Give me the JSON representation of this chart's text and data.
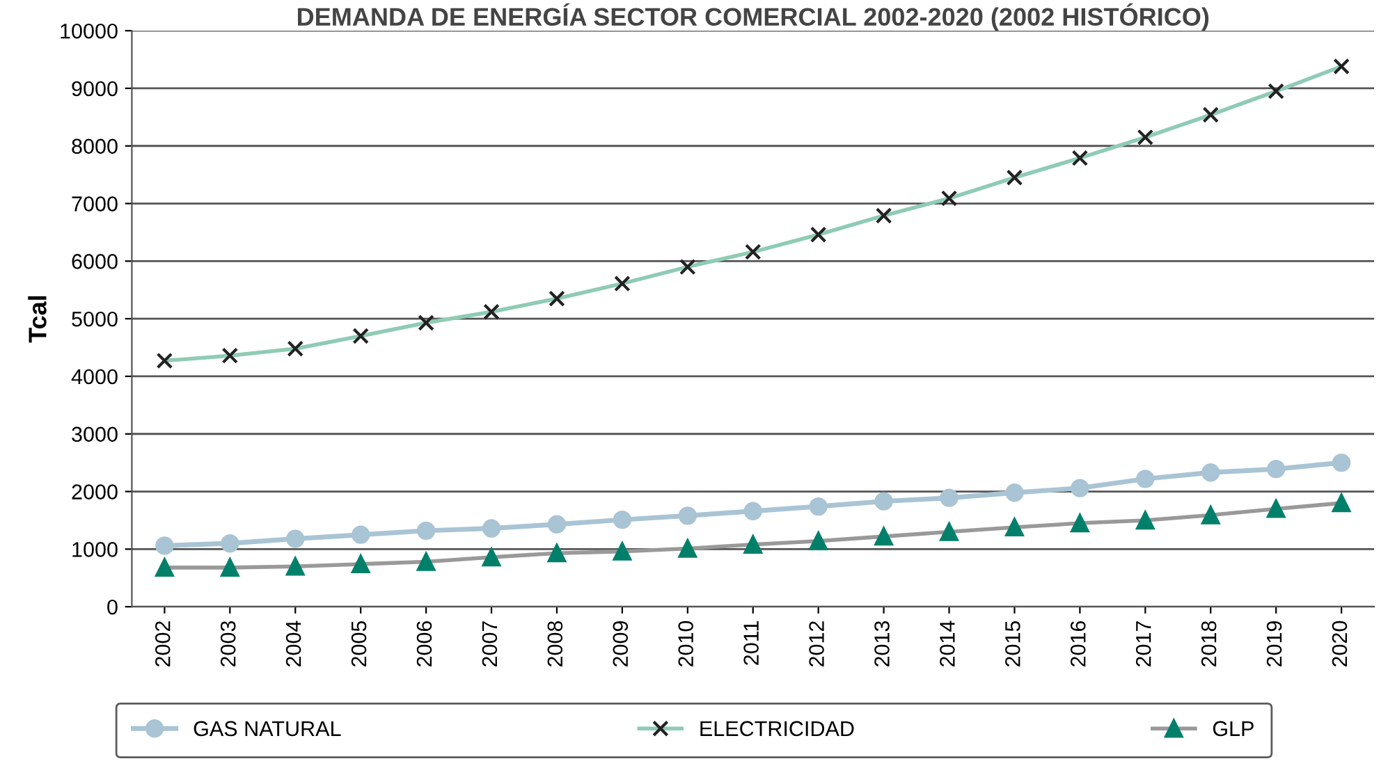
{
  "chart_data": {
    "type": "line",
    "title": "DEMANDA DE ENERGÍA SECTOR COMERCIAL 2002-2020 (2002 HISTÓRICO)",
    "ylabel": "Tcal",
    "categories": [
      "2002",
      "2003",
      "2004",
      "2005",
      "2006",
      "2007",
      "2008",
      "2009",
      "2010",
      "2011",
      "2012",
      "2013",
      "2014",
      "2015",
      "2016",
      "2017",
      "2018",
      "2019",
      "2020"
    ],
    "series": [
      {
        "name": "GAS NATURAL",
        "color": "#a9c4d4",
        "marker": "circle",
        "values": [
          1060,
          1100,
          1180,
          1250,
          1320,
          1360,
          1430,
          1510,
          1580,
          1660,
          1740,
          1830,
          1890,
          1980,
          2060,
          2220,
          2330,
          2390,
          2500
        ]
      },
      {
        "name": "ELECTRICIDAD",
        "color": "#8fcbb5",
        "marker": "cross",
        "values": [
          4270,
          4360,
          4480,
          4700,
          4930,
          5120,
          5350,
          5610,
          5900,
          6160,
          6460,
          6790,
          7090,
          7450,
          7790,
          8150,
          8540,
          8950,
          9380
        ]
      },
      {
        "name": "GLP",
        "color": "#999999",
        "marker": "triangle",
        "values": [
          680,
          680,
          700,
          740,
          780,
          860,
          930,
          960,
          1010,
          1080,
          1140,
          1220,
          1300,
          1380,
          1450,
          1500,
          1590,
          1700,
          1800
        ]
      }
    ],
    "ylim": [
      0,
      10000
    ],
    "yticks": [
      0,
      1000,
      2000,
      3000,
      4000,
      5000,
      6000,
      7000,
      8000,
      9000,
      10000
    ],
    "grid": "y",
    "legend": "bottom"
  }
}
